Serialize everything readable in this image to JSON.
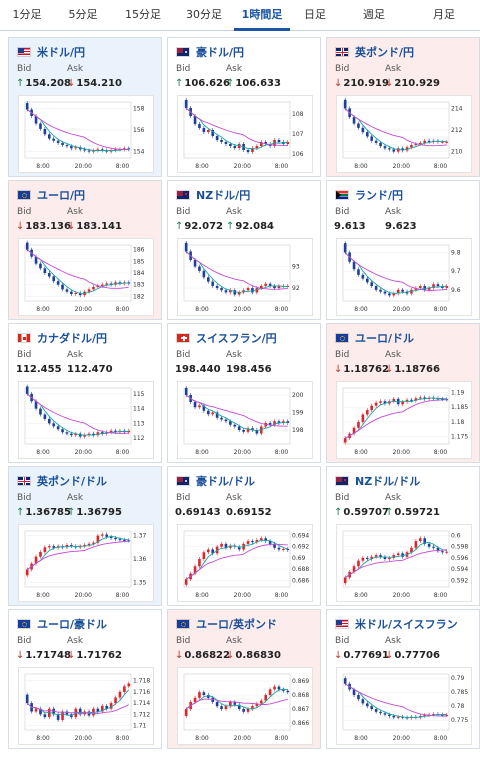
{
  "tabs": [
    {
      "label": "1分足",
      "active": false
    },
    {
      "label": "5分足",
      "active": false
    },
    {
      "label": "15分足",
      "active": false
    },
    {
      "label": "30分足",
      "active": false
    },
    {
      "label": "1時間足",
      "active": true
    },
    {
      "label": "日足",
      "active": false
    },
    {
      "label": "週足",
      "active": false
    },
    {
      "label": "月足",
      "active": false
    }
  ],
  "labels": {
    "bid": "Bid",
    "ask": "Ask"
  },
  "colors": {
    "up": "#1a7a4a",
    "down": "#c0392b",
    "candle_up": "#e0242a",
    "candle_down": "#1c3f9c",
    "ma_short": "#1aa5a5",
    "ma_long": "#c64ad6"
  },
  "cards": [
    {
      "pair": "米ドル/円",
      "flag": "us",
      "bg": "blue",
      "bid": "154.208",
      "ask": "154.210",
      "bid_dir": "up",
      "ask_dir": "down",
      "chart_data": {
        "type": "candlestick",
        "x_ticks": [
          "8:00",
          "20:00",
          "8:00"
        ],
        "y_ticks": [
          158,
          156,
          154
        ],
        "ylim": [
          153.4,
          158.6
        ],
        "close": [
          157.9,
          157.3,
          156.6,
          156.1,
          155.6,
          155.2,
          155.0,
          154.8,
          154.6,
          154.5,
          154.3,
          154.4,
          154.2,
          154.1,
          154.0,
          154.1,
          154.2,
          154.1,
          154.0,
          154.1,
          154.2,
          154.2,
          154.3,
          154.2
        ]
      }
    },
    {
      "pair": "豪ドル/円",
      "flag": "au",
      "bg": "white",
      "bid": "106.626",
      "ask": "106.633",
      "bid_dir": "up",
      "ask_dir": "up",
      "chart_data": {
        "type": "candlestick",
        "x_ticks": [
          "8:00",
          "20:00",
          "8:00"
        ],
        "y_ticks": [
          108,
          107,
          106
        ],
        "ylim": [
          105.8,
          108.6
        ],
        "close": [
          108.3,
          107.9,
          107.5,
          107.3,
          107.1,
          107.2,
          106.9,
          106.7,
          106.6,
          106.5,
          106.4,
          106.3,
          106.5,
          106.2,
          106.1,
          106.3,
          106.4,
          106.6,
          106.5,
          106.4,
          106.7,
          106.6,
          106.5,
          106.6
        ]
      }
    },
    {
      "pair": "英ポンド/円",
      "flag": "uk",
      "bg": "pink",
      "bid": "210.919",
      "ask": "210.929",
      "bid_dir": "down",
      "ask_dir": "down",
      "chart_data": {
        "type": "candlestick",
        "x_ticks": [
          "8:00",
          "20:00",
          "8:00"
        ],
        "y_ticks": [
          214,
          212,
          210
        ],
        "ylim": [
          209.4,
          214.6
        ],
        "close": [
          214.0,
          213.2,
          212.6,
          212.2,
          211.8,
          211.4,
          211.0,
          210.8,
          210.5,
          210.3,
          210.2,
          210.0,
          210.3,
          210.1,
          210.4,
          210.6,
          210.7,
          210.8,
          211.0,
          210.9,
          211.0,
          210.9,
          210.9,
          210.9
        ]
      }
    },
    {
      "pair": "ユーロ/円",
      "flag": "eu",
      "bg": "pink",
      "bid": "183.136",
      "ask": "183.141",
      "bid_dir": "down",
      "ask_dir": "down",
      "chart_data": {
        "type": "candlestick",
        "x_ticks": [
          "8:00",
          "20:00",
          "8:00"
        ],
        "y_ticks": [
          186,
          185,
          184,
          183,
          182
        ],
        "ylim": [
          181.6,
          186.4
        ],
        "close": [
          186.0,
          185.4,
          184.8,
          184.4,
          184.0,
          183.7,
          183.3,
          183.0,
          182.6,
          182.4,
          182.2,
          182.3,
          182.1,
          182.4,
          182.6,
          182.8,
          182.9,
          183.0,
          183.1,
          183.0,
          183.2,
          183.1,
          183.2,
          183.1
        ]
      }
    },
    {
      "pair": "NZドル/円",
      "flag": "nz",
      "bg": "white",
      "bid": "92.072",
      "ask": "92.084",
      "bid_dir": "up",
      "ask_dir": "up",
      "chart_data": {
        "type": "candlestick",
        "x_ticks": [
          "8:00",
          "20:00",
          "8:00"
        ],
        "y_ticks": [
          93,
          92
        ],
        "ylim": [
          91.4,
          94.0
        ],
        "close": [
          93.7,
          93.3,
          93.0,
          92.8,
          92.5,
          92.3,
          92.1,
          92.0,
          91.9,
          91.8,
          91.9,
          91.7,
          91.8,
          91.9,
          92.0,
          91.8,
          92.0,
          92.1,
          92.2,
          92.1,
          92.0,
          92.1,
          92.1,
          92.1
        ]
      }
    },
    {
      "pair": "ランド/円",
      "flag": "za",
      "bg": "white",
      "bid": "9.613",
      "ask": "9.623",
      "bid_dir": "none",
      "ask_dir": "none",
      "chart_data": {
        "type": "candlestick",
        "x_ticks": [
          "8:00",
          "20:00",
          "8:00"
        ],
        "y_ticks": [
          9.8,
          9.7,
          9.6
        ],
        "ylim": [
          9.54,
          9.84
        ],
        "close": [
          9.8,
          9.75,
          9.71,
          9.68,
          9.66,
          9.64,
          9.62,
          9.6,
          9.59,
          9.58,
          9.57,
          9.58,
          9.6,
          9.59,
          9.58,
          9.6,
          9.61,
          9.62,
          9.6,
          9.61,
          9.63,
          9.62,
          9.61,
          9.62
        ]
      }
    },
    {
      "pair": "カナダドル/円",
      "flag": "ca",
      "bg": "white",
      "bid": "112.455",
      "ask": "112.470",
      "bid_dir": "none",
      "ask_dir": "none",
      "chart_data": {
        "type": "candlestick",
        "x_ticks": [
          "8:00",
          "20:00",
          "8:00"
        ],
        "y_ticks": [
          115,
          114,
          113,
          112
        ],
        "ylim": [
          111.6,
          115.4
        ],
        "close": [
          115.0,
          114.5,
          114.0,
          113.6,
          113.3,
          113.0,
          112.8,
          112.6,
          112.4,
          112.3,
          112.2,
          112.3,
          112.1,
          112.2,
          112.3,
          112.2,
          112.4,
          112.3,
          112.4,
          112.5,
          112.4,
          112.5,
          112.4,
          112.5
        ]
      }
    },
    {
      "pair": "スイスフラン/円",
      "flag": "ch",
      "bg": "white",
      "bid": "198.440",
      "ask": "198.456",
      "bid_dir": "none",
      "ask_dir": "none",
      "chart_data": {
        "type": "candlestick",
        "x_ticks": [
          "8:00",
          "20:00",
          "8:00"
        ],
        "y_ticks": [
          200,
          199,
          198
        ],
        "ylim": [
          197.2,
          200.4
        ],
        "close": [
          200.0,
          199.6,
          199.3,
          199.4,
          199.1,
          198.9,
          199.0,
          198.7,
          198.6,
          198.5,
          198.3,
          198.2,
          198.0,
          197.9,
          198.1,
          198.0,
          197.8,
          198.2,
          198.4,
          198.3,
          198.5,
          198.4,
          198.5,
          198.4
        ]
      }
    },
    {
      "pair": "ユーロ/ドル",
      "flag": "eu",
      "bg": "pink",
      "bid": "1.18762",
      "ask": "1.18766",
      "bid_dir": "down",
      "ask_dir": "down",
      "chart_data": {
        "type": "candlestick",
        "x_ticks": [
          "8:00",
          "20:00",
          "8:00"
        ],
        "y_ticks": [
          1.19,
          1.185,
          1.18,
          1.175
        ],
        "ylim": [
          1.1725,
          1.1915
        ],
        "close": [
          1.1745,
          1.176,
          1.178,
          1.18,
          1.1825,
          1.184,
          1.1855,
          1.1865,
          1.187,
          1.1862,
          1.187,
          1.1878,
          1.186,
          1.1868,
          1.1875,
          1.1872,
          1.188,
          1.1883,
          1.1878,
          1.1882,
          1.188,
          1.1878,
          1.1877,
          1.1876
        ]
      }
    },
    {
      "pair": "英ポンド/ドル",
      "flag": "uk",
      "bg": "blue",
      "bid": "1.36785",
      "ask": "1.36795",
      "bid_dir": "up",
      "ask_dir": "up",
      "chart_data": {
        "type": "candlestick",
        "x_ticks": [
          "8:00",
          "20:00",
          "8:00"
        ],
        "y_ticks": [
          1.37,
          1.36,
          1.35
        ],
        "ylim": [
          1.348,
          1.372
        ],
        "close": [
          1.3555,
          1.358,
          1.361,
          1.363,
          1.365,
          1.3655,
          1.3648,
          1.3655,
          1.365,
          1.366,
          1.3655,
          1.365,
          1.3655,
          1.366,
          1.3665,
          1.367,
          1.37,
          1.3705,
          1.3695,
          1.369,
          1.3685,
          1.3682,
          1.368,
          1.3679
        ]
      }
    },
    {
      "pair": "豪ドル/ドル",
      "flag": "au",
      "bg": "white",
      "bid": "0.69143",
      "ask": "0.69152",
      "bid_dir": "none",
      "ask_dir": "none",
      "chart_data": {
        "type": "candlestick",
        "x_ticks": [
          "8:00",
          "20:00",
          "8:00"
        ],
        "y_ticks": [
          0.694,
          0.692,
          0.69,
          0.688,
          0.686
        ],
        "ylim": [
          0.6848,
          0.6948
        ],
        "close": [
          0.6862,
          0.6872,
          0.6885,
          0.6898,
          0.691,
          0.6915,
          0.6908,
          0.692,
          0.6925,
          0.6918,
          0.6922,
          0.692,
          0.6915,
          0.6925,
          0.693,
          0.6928,
          0.6932,
          0.6935,
          0.693,
          0.6925,
          0.6918,
          0.6915,
          0.6916,
          0.6914
        ]
      }
    },
    {
      "pair": "NZドル/ドル",
      "flag": "nz",
      "bg": "white",
      "bid": "0.59707",
      "ask": "0.59721",
      "bid_dir": "up",
      "ask_dir": "up",
      "chart_data": {
        "type": "candlestick",
        "x_ticks": [
          "8:00",
          "20:00",
          "8:00"
        ],
        "y_ticks": [
          0.6,
          0.598,
          0.596,
          0.594,
          0.592
        ],
        "ylim": [
          0.5908,
          0.6008
        ],
        "close": [
          0.5925,
          0.5935,
          0.5945,
          0.5955,
          0.596,
          0.5958,
          0.5962,
          0.5965,
          0.5962,
          0.5958,
          0.596,
          0.5965,
          0.5968,
          0.5962,
          0.597,
          0.5978,
          0.599,
          0.5995,
          0.5985,
          0.598,
          0.5978,
          0.5972,
          0.597,
          0.5971
        ]
      }
    },
    {
      "pair": "ユーロ/豪ドル",
      "flag": "eu",
      "bg": "white",
      "bid": "1.71748",
      "ask": "1.71762",
      "bid_dir": "down",
      "ask_dir": "down",
      "chart_data": {
        "type": "candlestick",
        "x_ticks": [
          "8:00",
          "20:00",
          "8:00"
        ],
        "y_ticks": [
          1.718,
          1.716,
          1.714,
          1.712,
          1.71
        ],
        "ylim": [
          1.7092,
          1.7192
        ],
        "close": [
          1.714,
          1.7125,
          1.713,
          1.712,
          1.7115,
          1.713,
          1.712,
          1.711,
          1.7125,
          1.712,
          1.7115,
          1.713,
          1.712,
          1.7125,
          1.7118,
          1.713,
          1.7125,
          1.7135,
          1.713,
          1.714,
          1.715,
          1.716,
          1.717,
          1.7175
        ]
      }
    },
    {
      "pair": "ユーロ/英ポンド",
      "flag": "eu",
      "bg": "pink",
      "bid": "0.86822",
      "ask": "0.86830",
      "bid_dir": "down",
      "ask_dir": "down",
      "chart_data": {
        "type": "candlestick",
        "x_ticks": [
          "8:00",
          "20:00",
          "8:00"
        ],
        "y_ticks": [
          0.869,
          0.868,
          0.867,
          0.866
        ],
        "ylim": [
          0.8655,
          0.8695
        ],
        "close": [
          0.867,
          0.8675,
          0.8678,
          0.8682,
          0.868,
          0.8678,
          0.8675,
          0.8672,
          0.867,
          0.8672,
          0.8675,
          0.8673,
          0.867,
          0.8668,
          0.867,
          0.8672,
          0.8674,
          0.8676,
          0.868,
          0.8684,
          0.8686,
          0.8684,
          0.8683,
          0.8682
        ]
      }
    },
    {
      "pair": "米ドル/スイスフラン",
      "flag": "us",
      "bg": "white",
      "bid": "0.77691",
      "ask": "0.77706",
      "bid_dir": "down",
      "ask_dir": "down",
      "chart_data": {
        "type": "candlestick",
        "x_ticks": [
          "8:00",
          "20:00",
          "8:00"
        ],
        "y_ticks": [
          0.79,
          0.785,
          0.78,
          0.775
        ],
        "ylim": [
          0.7715,
          0.7915
        ],
        "close": [
          0.788,
          0.786,
          0.784,
          0.7825,
          0.781,
          0.78,
          0.779,
          0.778,
          0.7775,
          0.777,
          0.7765,
          0.776,
          0.7762,
          0.776,
          0.7758,
          0.7762,
          0.776,
          0.7765,
          0.7768,
          0.777,
          0.7772,
          0.777,
          0.7769,
          0.7769
        ]
      }
    }
  ]
}
